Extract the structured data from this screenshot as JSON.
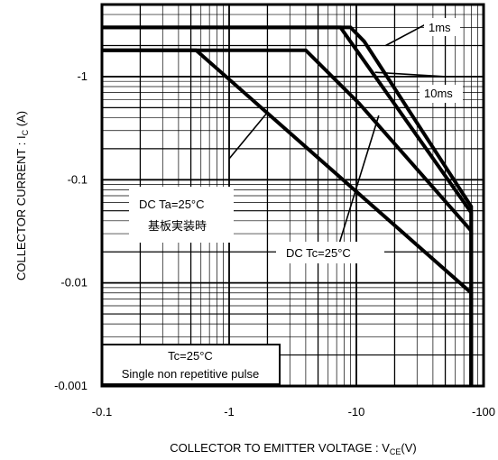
{
  "chart_data": {
    "type": "line",
    "x_scale": "log",
    "y_scale": "log",
    "xlim": [
      -0.1,
      -100
    ],
    "ylim": [
      -0.001,
      -5
    ],
    "grid": true,
    "xlabel_prefix": "COLLECTOR TO EMITTER VOLTAGE : V",
    "xlabel_sub": "CE",
    "xlabel_suffix": "(V)",
    "ylabel_prefix": "COLLECTOR CURRENT : I",
    "ylabel_sub": "C",
    "ylabel_suffix": " (A)",
    "x_ticks": [
      "-0.1",
      "-1",
      "-10",
      "-100"
    ],
    "y_ticks": [
      "-1",
      "-0.1",
      "-0.01",
      "-0.001"
    ],
    "series": [
      {
        "name": "1ms",
        "points": [
          [
            -0.1,
            -3.0
          ],
          [
            -9.0,
            -3.0
          ],
          [
            -11.5,
            -2.2
          ],
          [
            -80,
            -0.055
          ],
          [
            -80,
            -0.001
          ]
        ]
      },
      {
        "name": "10ms",
        "points": [
          [
            -0.1,
            -3.0
          ],
          [
            -7.5,
            -3.0
          ],
          [
            -80,
            -0.048
          ],
          [
            -80,
            -0.001
          ]
        ]
      },
      {
        "name": "DC Tc=25°C",
        "points": [
          [
            -0.1,
            -1.8
          ],
          [
            -4.0,
            -1.8
          ],
          [
            -10.5,
            -0.55
          ],
          [
            -80,
            -0.032
          ],
          [
            -80,
            -0.001
          ]
        ]
      },
      {
        "name": "DC Ta=25°C 基板実装時",
        "points": [
          [
            -0.1,
            -1.8
          ],
          [
            -0.55,
            -1.8
          ],
          [
            -80,
            -0.008
          ],
          [
            -80,
            -0.001
          ]
        ]
      }
    ],
    "annotations": {
      "label_1ms": "1ms",
      "label_10ms": "10ms",
      "label_dc_tc": "DC  Tc=25°C",
      "label_dc_ta_line1": "DC  Ta=25°C",
      "label_dc_ta_line2": "基板実装時",
      "condition_line1": "Tc=25°C",
      "condition_line2": "Single non repetitive pulse"
    }
  }
}
